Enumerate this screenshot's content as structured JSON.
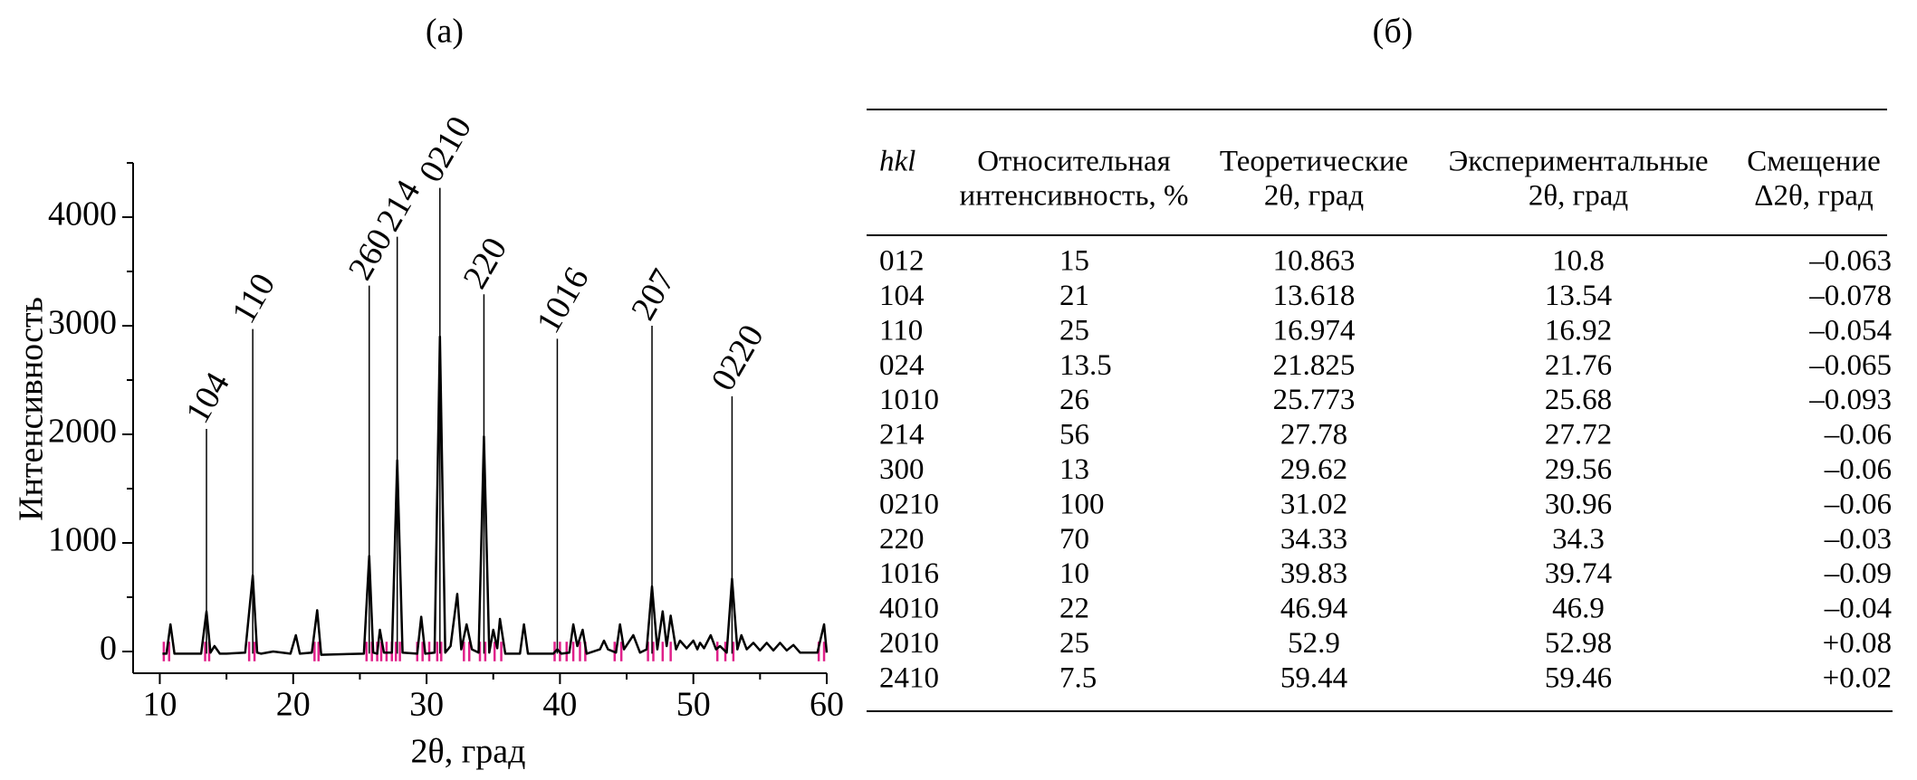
{
  "chart_data": {
    "type": "line",
    "title": "(а)",
    "x_label": "2θ, град",
    "y_label": "Интенсивность",
    "color": "#000000",
    "x": [
      10.2,
      10.5,
      10.8,
      11.1,
      11.5,
      13.1,
      13.5,
      13.8,
      14.1,
      14.5,
      15,
      16.4,
      16.97,
      17.3,
      17.6,
      18.5,
      19.8,
      20.2,
      20.5,
      21.4,
      21.8,
      22.1,
      25.3,
      25.7,
      26.0,
      26.3,
      26.5,
      26.8,
      27.4,
      27.8,
      28.2,
      29.3,
      29.6,
      29.9,
      30.6,
      31.0,
      31.4,
      31.8,
      32.3,
      32.6,
      33.0,
      33.4,
      33.9,
      34.3,
      34.7,
      35.0,
      35.3,
      35.5,
      35.9,
      37.0,
      37.3,
      37.6,
      39.5,
      39.8,
      40.1,
      40.7,
      41.0,
      41.3,
      41.7,
      42.0,
      43.0,
      43.3,
      43.6,
      44.2,
      44.5,
      44.8,
      45.5,
      46.0,
      46.5,
      46.9,
      47.3,
      47.7,
      48.0,
      48.3,
      48.7,
      49.0,
      49.5,
      50.0,
      50.3,
      50.5,
      50.8,
      51.3,
      51.7,
      52.0,
      52.5,
      52.9,
      53.3,
      53.6,
      54.0,
      54.5,
      55.0,
      55.5,
      56.0,
      56.5,
      57.0,
      57.5,
      58.0,
      59.3,
      59.8,
      60.0
    ],
    "values": [
      -20,
      -20,
      250,
      -20,
      -20,
      -20,
      370,
      -10,
      50,
      -20,
      -20,
      -10,
      700,
      -10,
      -20,
      0,
      -20,
      150,
      -20,
      -10,
      380,
      -30,
      -20,
      880,
      -10,
      -20,
      200,
      -10,
      -10,
      1760,
      -10,
      -20,
      320,
      -20,
      -10,
      2900,
      -10,
      50,
      530,
      20,
      250,
      20,
      -10,
      1980,
      -10,
      200,
      30,
      300,
      -20,
      -20,
      250,
      -20,
      -20,
      20,
      -20,
      -10,
      250,
      50,
      200,
      -20,
      20,
      100,
      20,
      -10,
      250,
      20,
      150,
      -10,
      20,
      600,
      20,
      370,
      50,
      330,
      20,
      100,
      30,
      100,
      20,
      80,
      30,
      150,
      20,
      50,
      -10,
      670,
      20,
      150,
      20,
      80,
      10,
      80,
      10,
      80,
      10,
      60,
      -10,
      -10,
      250,
      -10
    ],
    "xlim": [
      8,
      60
    ],
    "ylim": [
      -200,
      4500
    ],
    "xticks": [
      10,
      20,
      30,
      40,
      50,
      60
    ],
    "xticks_minor": [
      15,
      25,
      35,
      45,
      55
    ],
    "yticks": [
      0,
      1000,
      2000,
      3000,
      4000
    ],
    "yticks_minor": [
      500,
      1500,
      2500,
      3500,
      4500
    ],
    "annotations": [
      {
        "text": "104",
        "x": 13.5,
        "y": 2050
      },
      {
        "text": "110",
        "x": 16.97,
        "y": 2970
      },
      {
        "text": "260",
        "x": 25.7,
        "y": 3370
      },
      {
        "text": "214",
        "x": 27.8,
        "y": 3820
      },
      {
        "text": "0210",
        "x": 31.0,
        "y": 4270
      },
      {
        "text": "220",
        "x": 34.3,
        "y": 3290
      },
      {
        "text": "1016",
        "x": 39.8,
        "y": 2880
      },
      {
        "text": "207",
        "x": 46.9,
        "y": 3000
      },
      {
        "text": "0220",
        "x": 52.9,
        "y": 2350
      }
    ],
    "reflections": {
      "color": "#e0208a",
      "x": [
        10.3,
        10.7,
        13.4,
        13.7,
        16.7,
        17.1,
        21.6,
        21.9,
        25.5,
        25.9,
        26.3,
        26.6,
        27.0,
        27.4,
        27.7,
        28.0,
        29.3,
        29.7,
        30.2,
        30.8,
        31.1,
        32.8,
        33.2,
        34.0,
        34.4,
        35.1,
        35.6,
        39.6,
        40.0,
        40.5,
        41.0,
        41.5,
        41.9,
        44.1,
        44.6,
        46.6,
        47.0,
        47.7,
        48.3,
        51.8,
        52.4,
        53.0,
        59.4,
        59.8
      ]
    }
  },
  "table": {
    "title": "(б)",
    "header": [
      [
        "hkl"
      ],
      [
        "Относительная",
        "интенсивность, %"
      ],
      [
        "Теоретические",
        "2θ, град"
      ],
      [
        "Экспериментальные",
        "2θ, град"
      ],
      [
        "Смещение",
        "Δ2θ, град"
      ]
    ],
    "rows": [
      [
        "012",
        "15",
        "10.863",
        "10.8",
        "–0.063"
      ],
      [
        "104",
        "21",
        "13.618",
        "13.54",
        "–0.078"
      ],
      [
        "110",
        "25",
        "16.974",
        "16.92",
        "–0.054"
      ],
      [
        "024",
        "13.5",
        "21.825",
        "21.76",
        "–0.065"
      ],
      [
        "1010",
        "26",
        "25.773",
        "25.68",
        "–0.093"
      ],
      [
        "214",
        "56",
        "27.78",
        "27.72",
        "–0.06"
      ],
      [
        "300",
        "13",
        "29.62",
        "29.56",
        "–0.06"
      ],
      [
        "0210",
        "100",
        "31.02",
        "30.96",
        "–0.06"
      ],
      [
        "220",
        "70",
        "34.33",
        "34.3",
        "–0.03"
      ],
      [
        "1016",
        "10",
        "39.83",
        "39.74",
        "–0.09"
      ],
      [
        "4010",
        "22",
        "46.94",
        "46.9",
        "–0.04"
      ],
      [
        "2010",
        "25",
        "52.9",
        "52.98",
        "+0.08"
      ],
      [
        "2410",
        "7.5",
        "59.44",
        "59.46",
        "+0.02"
      ]
    ]
  }
}
